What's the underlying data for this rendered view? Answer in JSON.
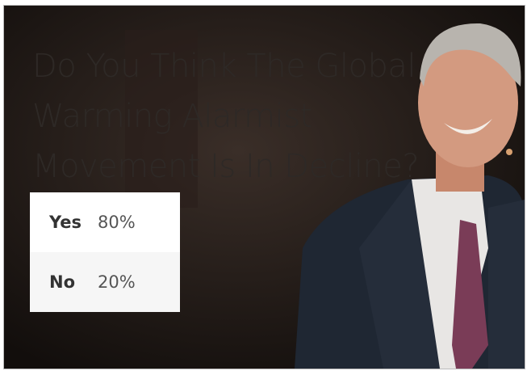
{
  "poll": {
    "question": "Do You Think The Global Warming Alarmist Movement Is In Decline?",
    "options": [
      {
        "label": "Yes",
        "result": "80%"
      },
      {
        "label": "No",
        "result": "20%"
      }
    ]
  }
}
